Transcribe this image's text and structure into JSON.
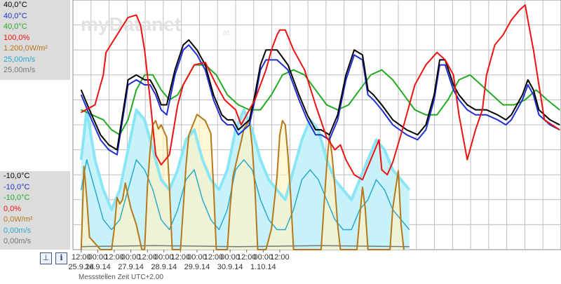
{
  "watermark": "myDatanet",
  "watermark_suffix": "at",
  "legend_top": [
    {
      "text": "40,0°C",
      "color": "#000000"
    },
    {
      "text": "40,0°C",
      "color": "#1f2fd0"
    },
    {
      "text": "40,0°C",
      "color": "#22aa22"
    },
    {
      "text": "100,0%",
      "color": "#ee1111"
    },
    {
      "text": "1.200,0W/m²",
      "color": "#b5781a"
    },
    {
      "text": "25,00m/s",
      "color": "#2aaacc"
    },
    {
      "text": "25,00m/s",
      "color": "#777777"
    }
  ],
  "legend_bottom": [
    {
      "text": "-10,0°C",
      "color": "#000000"
    },
    {
      "text": "-10,0°C",
      "color": "#1f2fd0"
    },
    {
      "text": "-10,0°C",
      "color": "#22aa22"
    },
    {
      "text": "0,0%",
      "color": "#ee1111"
    },
    {
      "text": "0,0W/m²",
      "color": "#b5781a"
    },
    {
      "text": "0,00m/s",
      "color": "#2aaacc"
    },
    {
      "text": "0,00m/s",
      "color": "#777777"
    }
  ],
  "footer": "Messstellen Zeit UTC+2.00",
  "icons": {
    "cursor": "cursor-icon",
    "info": "info-icon"
  },
  "chart_data": {
    "type": "line",
    "x_start": "25.9.14 06:00",
    "x_end": "1.10.14 23:00",
    "x_tick_labels": [
      "12:00",
      "00:00",
      "12:00",
      "00:00",
      "12:00",
      "00:00",
      "12:00",
      "00:00",
      "12:00",
      "00:00",
      "12:00",
      "00:00",
      "12:00"
    ],
    "x_date_labels": [
      "25.9.14",
      "26.9.14",
      "27.9.14",
      "28.9.14",
      "29.9.14",
      "30.9.14",
      "1.10.14"
    ],
    "grid": true,
    "series": [
      {
        "key": "humidity",
        "color": "#ee1111",
        "x": [
          6,
          16,
          22,
          24,
          32,
          40,
          46,
          49,
          52,
          56,
          60,
          64,
          70,
          76,
          80,
          88,
          96,
          104,
          110,
          118,
          122,
          126,
          132,
          136,
          140,
          144,
          148,
          150,
          154,
          160,
          168,
          176,
          184,
          190,
          194,
          198,
          204,
          210,
          216,
          222,
          224,
          228,
          232,
          240,
          248,
          256,
          264,
          270,
          276,
          280,
          284,
          286,
          288,
          292,
          297,
          300,
          306,
          312,
          318,
          324,
          328,
          330,
          334,
          338,
          342,
          353
        ],
        "y": [
          55,
          58,
          70,
          79,
          86,
          93,
          94,
          90,
          80,
          60,
          38,
          34,
          38,
          58,
          66,
          74,
          75,
          66,
          60,
          56,
          50,
          54,
          60,
          66,
          72,
          80,
          86,
          88,
          88,
          80,
          72,
          58,
          45,
          40,
          42,
          36,
          30,
          28,
          36,
          44,
          32,
          30,
          35,
          50,
          66,
          74,
          79,
          76,
          70,
          54,
          42,
          36,
          40,
          48,
          56,
          70,
          82,
          86,
          92,
          96,
          98,
          92,
          80,
          66,
          52,
          48
        ]
      },
      {
        "key": "t_black",
        "color": "#000000",
        "x": [
          6,
          12,
          20,
          26,
          32,
          36,
          40,
          46,
          52,
          56,
          60,
          64,
          68,
          74,
          80,
          84,
          90,
          96,
          102,
          108,
          112,
          116,
          120,
          124,
          128,
          132,
          136,
          140,
          148,
          156,
          164,
          170,
          176,
          180,
          186,
          192,
          198,
          204,
          210,
          214,
          218,
          224,
          232,
          242,
          250,
          256,
          262,
          266,
          270,
          276,
          280,
          286,
          292,
          300,
          308,
          314,
          318,
          322,
          326,
          330,
          334,
          338,
          346,
          353
        ],
        "y": [
          22,
          18,
          13,
          11,
          10,
          17,
          24,
          25,
          24,
          24,
          22,
          19,
          19,
          26,
          31,
          32,
          30,
          27,
          21,
          17,
          16,
          16,
          14,
          15,
          16,
          21,
          27,
          30,
          30,
          27,
          21,
          17,
          14,
          14,
          13,
          17,
          25,
          30,
          29,
          22,
          21,
          19,
          16,
          14,
          13,
          15,
          21,
          28,
          28,
          23,
          21,
          19,
          18,
          18,
          17,
          16,
          17,
          19,
          21,
          24,
          22,
          18,
          16,
          15
        ]
      },
      {
        "key": "t_blue",
        "color": "#1f2fd0",
        "x": [
          6,
          12,
          20,
          26,
          32,
          36,
          40,
          46,
          52,
          56,
          60,
          64,
          68,
          74,
          80,
          84,
          90,
          96,
          102,
          108,
          112,
          116,
          120,
          124,
          128,
          132,
          136,
          140,
          148,
          156,
          164,
          170,
          176,
          180,
          186,
          192,
          198,
          204,
          210,
          214,
          218,
          224,
          232,
          242,
          250,
          256,
          262,
          266,
          270,
          276,
          280,
          286,
          292,
          300,
          308,
          314,
          318,
          322,
          326,
          330,
          334,
          338,
          346,
          353
        ],
        "y": [
          21,
          17,
          12,
          10,
          9,
          16,
          23,
          24,
          23,
          23,
          21,
          18,
          17,
          25,
          30,
          31,
          29,
          26,
          20,
          16,
          15,
          15,
          13,
          14,
          15,
          20,
          26,
          28,
          28,
          26,
          20,
          16,
          13,
          13,
          12,
          16,
          24,
          29,
          28,
          21,
          20,
          18,
          15,
          13,
          12,
          14,
          20,
          27,
          27,
          22,
          20,
          18,
          17,
          17,
          16,
          15,
          16,
          18,
          20,
          23,
          21,
          17,
          15,
          14
        ]
      },
      {
        "key": "t_green",
        "color": "#22aa22",
        "x": [
          6,
          14,
          22,
          28,
          34,
          40,
          46,
          52,
          58,
          64,
          70,
          76,
          82,
          88,
          96,
          104,
          112,
          120,
          128,
          136,
          144,
          152,
          160,
          168,
          176,
          184,
          192,
          200,
          208,
          216,
          224,
          232,
          240,
          248,
          256,
          264,
          272,
          280,
          288,
          296,
          304,
          312,
          320,
          328,
          336,
          344,
          353
        ],
        "y": [
          18,
          17,
          16,
          14,
          13,
          16,
          22,
          25,
          25,
          22,
          20,
          21,
          24,
          27,
          27,
          25,
          21,
          19,
          18,
          18,
          21,
          25,
          26,
          25,
          22,
          19,
          18,
          19,
          22,
          25,
          26,
          24,
          21,
          18,
          17,
          17,
          20,
          24,
          25,
          23,
          21,
          19,
          19,
          20,
          22,
          20,
          18
        ]
      },
      {
        "key": "radiation",
        "color": "#b5781a",
        "x": [
          6,
          8,
          10,
          12,
          20,
          28,
          30,
          32,
          34,
          36,
          38,
          40,
          42,
          46,
          50,
          52,
          54,
          56,
          58,
          60,
          62,
          64,
          68,
          70,
          72,
          74,
          76,
          78,
          80,
          82,
          84,
          90,
          96,
          100,
          102,
          104,
          106,
          108,
          110,
          112,
          114,
          116,
          122,
          124,
          126,
          128,
          130,
          132,
          134,
          136,
          138,
          140,
          144,
          148,
          150,
          152,
          154,
          156,
          158,
          160,
          166,
          172,
          180,
          182,
          184,
          186,
          188,
          190,
          192,
          194,
          196,
          204,
          206,
          208,
          210,
          212,
          214,
          220,
          230,
          232,
          236,
          238,
          240
        ],
        "y": [
          0,
          400,
          250,
          60,
          0,
          0,
          100,
          250,
          220,
          240,
          320,
          260,
          200,
          120,
          0,
          0,
          300,
          480,
          600,
          620,
          580,
          600,
          540,
          300,
          0,
          0,
          0,
          0,
          200,
          400,
          550,
          650,
          620,
          560,
          300,
          0,
          0,
          0,
          0,
          0,
          200,
          350,
          520,
          580,
          600,
          620,
          500,
          300,
          0,
          0,
          0,
          0,
          100,
          350,
          550,
          620,
          600,
          450,
          250,
          0,
          0,
          0,
          0,
          200,
          400,
          550,
          450,
          300,
          120,
          0,
          0,
          0,
          0,
          150,
          300,
          200,
          0,
          0,
          0,
          200,
          380,
          120,
          0
        ]
      },
      {
        "key": "wind_light",
        "color": "#8ae6f5",
        "x": [
          6,
          10,
          16,
          22,
          28,
          34,
          40,
          46,
          52,
          58,
          64,
          70,
          76,
          82,
          88,
          94,
          100,
          106,
          112,
          118,
          124,
          130,
          136,
          142,
          148,
          154,
          160,
          166,
          172,
          178,
          184,
          190,
          196,
          202,
          208,
          214,
          220,
          226,
          232,
          238,
          244
        ],
        "y": [
          9,
          14,
          9,
          6,
          4,
          6,
          10,
          14,
          13,
          10,
          7,
          6,
          8,
          11,
          12,
          9,
          7,
          6,
          8,
          12,
          14,
          12,
          9,
          7,
          6,
          5,
          8,
          11,
          13,
          12,
          9,
          7,
          6,
          5,
          7,
          9,
          11,
          10,
          8,
          7,
          6
        ]
      },
      {
        "key": "wind",
        "color": "#2aaacc",
        "x": [
          6,
          10,
          16,
          22,
          28,
          34,
          40,
          46,
          52,
          58,
          64,
          70,
          76,
          82,
          88,
          94,
          100,
          106,
          112,
          118,
          124,
          130,
          136,
          142,
          148,
          154,
          160,
          166,
          172,
          178,
          184,
          190,
          196,
          202,
          208,
          214,
          220,
          226,
          232,
          238,
          244
        ],
        "y": [
          6,
          9,
          6,
          3,
          2,
          3,
          6,
          9,
          8,
          6,
          3,
          2,
          4,
          7,
          8,
          5,
          3,
          2,
          4,
          8,
          9,
          8,
          5,
          3,
          2,
          2,
          4,
          7,
          8,
          7,
          5,
          3,
          2,
          2,
          4,
          5,
          7,
          6,
          4,
          3,
          2
        ]
      },
      {
        "key": "wind_gray",
        "color": "#777777",
        "x": [
          6,
          60,
          120,
          180,
          244
        ],
        "y": [
          0.3,
          0.4,
          0.3,
          0.4,
          0.3
        ]
      }
    ]
  }
}
